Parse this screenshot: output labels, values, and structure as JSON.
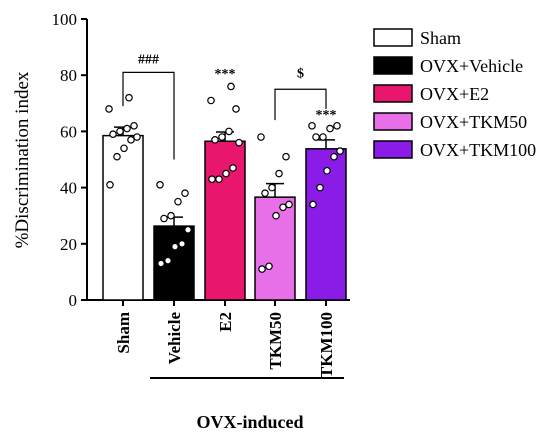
{
  "chart_data": {
    "type": "bar",
    "title": "",
    "ylabel": "%Discrimination index",
    "xlabel": "",
    "ylim": [
      0,
      100
    ],
    "yticks": [
      0,
      20,
      40,
      60,
      80,
      100
    ],
    "grid": false,
    "legend_position": "right",
    "categories": [
      "Sham",
      "Vehicle",
      "E2",
      "TKM50",
      "TKM100"
    ],
    "group_label": "OVX-induced",
    "series": [
      {
        "name": "Sham",
        "category": "Sham",
        "mean": 58.5,
        "sem": 3.0,
        "color": "#ffffff",
        "points": [
          41,
          51,
          54,
          57,
          58,
          59,
          60,
          61,
          62,
          68,
          72
        ]
      },
      {
        "name": "OVX+Vehicle",
        "category": "Vehicle",
        "mean": 26.3,
        "sem": 3.2,
        "color": "#000000",
        "points": [
          13,
          14,
          19,
          20,
          25,
          29,
          30,
          35,
          38,
          41
        ]
      },
      {
        "name": "OVX+E2",
        "category": "E2",
        "mean": 56.5,
        "sem": 3.3,
        "color": "#e8176d",
        "points": [
          43,
          43,
          45,
          47,
          56,
          57,
          58,
          60,
          68,
          71,
          76
        ]
      },
      {
        "name": "OVX+TKM50",
        "category": "TKM50",
        "mean": 36.6,
        "sem": 4.8,
        "color": "#e76fe8",
        "points": [
          11,
          12,
          30,
          33,
          34,
          38,
          40,
          45,
          51,
          58
        ]
      },
      {
        "name": "OVX+TKM100",
        "category": "TKM100",
        "mean": 53.8,
        "sem": 3.2,
        "color": "#8b1ce8",
        "points": [
          34,
          40,
          46,
          51,
          53,
          58,
          58,
          61,
          62,
          62
        ]
      }
    ],
    "annotations": {
      "bracket_sham_vehicle": "###",
      "bracket_tkm50_tkm100": "$",
      "star_e2": "***",
      "star_tkm100": "***"
    }
  }
}
